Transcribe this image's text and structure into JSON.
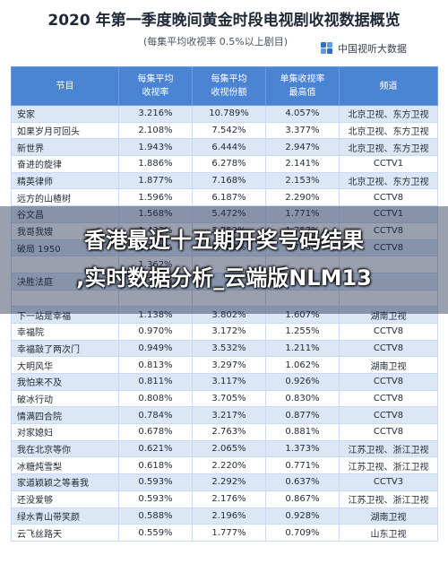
{
  "title": "2020 年第一季度晚间黄金时段电视剧收视数据概览",
  "subtitle": "(每集平均收视率 0.5%以上剧目)",
  "brand": "中国视听大数据",
  "headers": [
    "节目",
    "每集平均\n收视率",
    "每集平均\n收视份额",
    "单集收视率\n最高值",
    "频道"
  ],
  "rows": [
    [
      "安家",
      "3.216%",
      "10.789%",
      "4.057%",
      "北京卫视、东方卫视"
    ],
    [
      "如果岁月可回头",
      "2.108%",
      "7.542%",
      "3.377%",
      "北京卫视、东方卫视"
    ],
    [
      "新世界",
      "1.943%",
      "6.444%",
      "2.947%",
      "北京卫视、东方卫视"
    ],
    [
      "奋进的旋律",
      "1.886%",
      "6.278%",
      "2.141%",
      "CCTV1"
    ],
    [
      "精英律师",
      "1.877%",
      "7.168%",
      "2.153%",
      "北京卫视、东方卫视"
    ],
    [
      "远方的山楂树",
      "1.596%",
      "6.187%",
      "2.290%",
      "CCTV8"
    ],
    [
      "谷文昌",
      "1.568%",
      "5.472%",
      "1.771%",
      "CCTV1"
    ],
    [
      "我哥我嫂",
      "1.433%",
      "5.752%",
      "1.757%",
      "CCTV8"
    ],
    [
      "破局 1950",
      "1.366%",
      "5.659%",
      "1.723%",
      "CCTV8"
    ],
    [
      "",
      "1.362%",
      "",
      "",
      ""
    ],
    [
      "决胜法庭",
      "1.339%",
      "",
      "",
      ""
    ],
    [
      "",
      "",
      "",
      "",
      ""
    ],
    [
      "下一站是幸福",
      "1.138%",
      "3.802%",
      "1.607%",
      "湖南卫视"
    ],
    [
      "幸福院",
      "0.970%",
      "3.172%",
      "1.255%",
      "CCTV8"
    ],
    [
      "幸福敲了两次门",
      "0.949%",
      "3.532%",
      "1.211%",
      "CCTV8"
    ],
    [
      "大明风华",
      "0.813%",
      "3.297%",
      "1.062%",
      "湖南卫视"
    ],
    [
      "我怕来不及",
      "0.811%",
      "3.117%",
      "0.926%",
      "CCTV8"
    ],
    [
      "破冰行动",
      "0.808%",
      "3.705%",
      "0.830%",
      "CCTV8"
    ],
    [
      "情满四合院",
      "0.784%",
      "3.217%",
      "0.877%",
      "CCTV8"
    ],
    [
      "对家媳妇",
      "0.678%",
      "2.763%",
      "0.881%",
      "CCTV8"
    ],
    [
      "我在北京等你",
      "0.621%",
      "2.065%",
      "1.373%",
      "江苏卫视、浙江卫视"
    ],
    [
      "冰糖炖雪梨",
      "0.618%",
      "2.220%",
      "0.771%",
      "江苏卫视、浙江卫视"
    ],
    [
      "家道颖颖之等着我",
      "0.593%",
      "2.292%",
      "0.637%",
      "CCTV3"
    ],
    [
      "还没爱够",
      "0.593%",
      "2.176%",
      "0.867%",
      "江苏卫视、浙江卫视"
    ],
    [
      "绿水青山带笑颜",
      "0.588%",
      "2.196%",
      "0.928%",
      "湖南卫视"
    ],
    [
      "云飞丝路天",
      "0.559%",
      "1.777%",
      "0.709%",
      "山东卫视"
    ]
  ],
  "overlay": {
    "line1": "香港最近十五期开奖号码结果",
    "line2": ",实时数据分析_云端版NLM13"
  },
  "colors": {
    "header_bg": "#4a84d3",
    "row_alt": "#dbe7f7",
    "overlay": "rgba(30,45,75,0.45)"
  }
}
